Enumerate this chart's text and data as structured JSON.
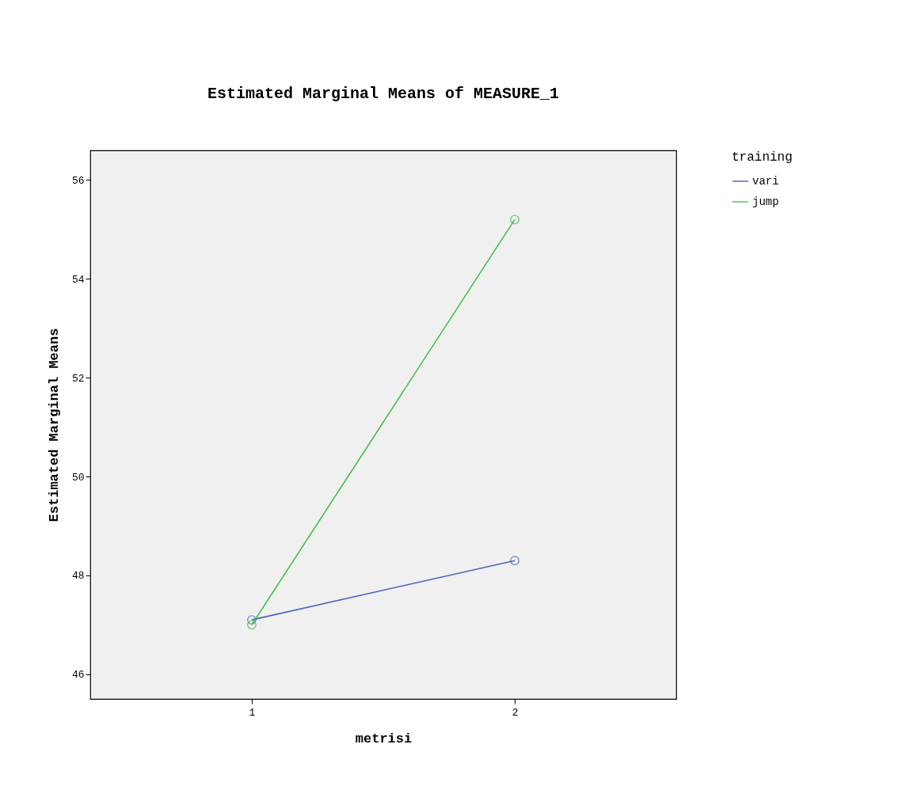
{
  "chart_data": {
    "type": "line",
    "title": "Estimated Marginal Means of MEASURE_1",
    "xlabel": "metrisi",
    "ylabel": "Estimated Marginal Means",
    "legend_title": "training",
    "categories": [
      "1",
      "2"
    ],
    "series": [
      {
        "name": "vari",
        "color": "#4a63bd",
        "values": [
          47.1,
          48.3
        ]
      },
      {
        "name": "jump",
        "color": "#45be4a",
        "values": [
          47.0,
          55.2
        ]
      }
    ],
    "ylim": [
      45.5,
      56.6
    ],
    "yticks": [
      46,
      48,
      50,
      52,
      54,
      56
    ],
    "grid": false,
    "legend": "top right",
    "marker": "circle",
    "line_style": "solid"
  }
}
